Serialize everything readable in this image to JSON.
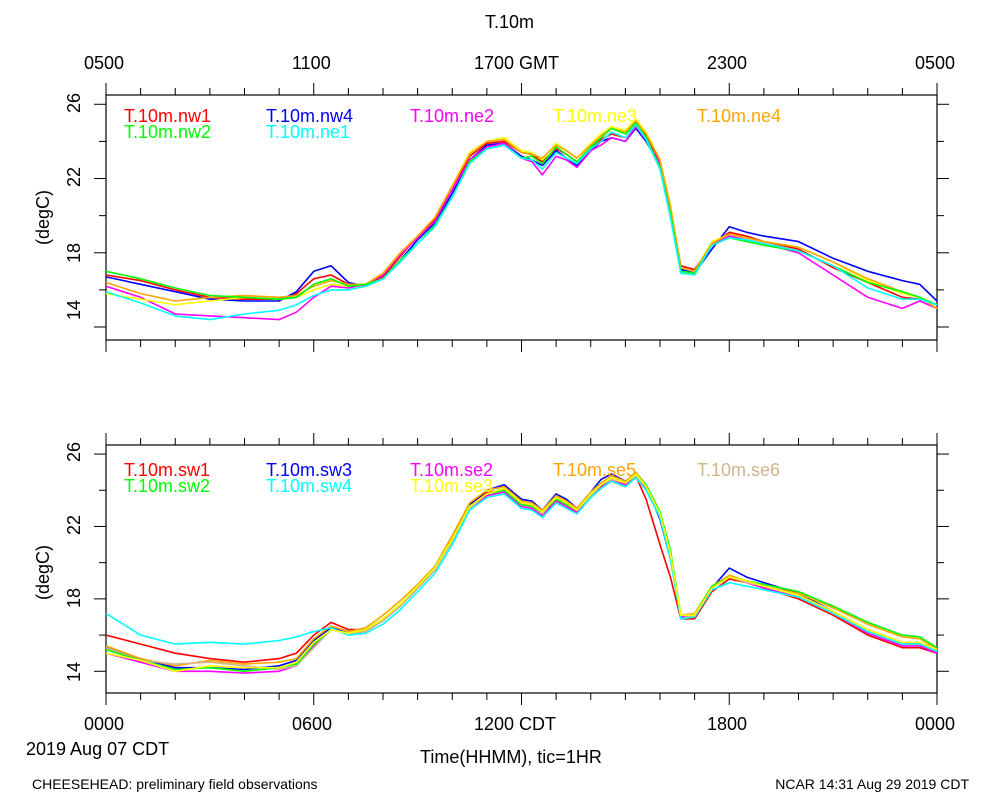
{
  "chart_data": [
    {
      "type": "line",
      "title": "T.10m",
      "ylabel": "(degC)",
      "ylim": [
        13.3,
        26.5
      ],
      "yticks": [
        14,
        18,
        22,
        26
      ],
      "xlim": [
        0,
        24
      ],
      "top_axis_labels": [
        "0500",
        "1100",
        "1700 GMT",
        "2300",
        "0500"
      ],
      "legend": [
        "T.10m.nw1",
        "T.10m.nw4",
        "T.10m.ne2",
        "T.10m.ne3",
        "T.10m.ne4",
        "T.10m.nw2",
        "T.10m.ne1"
      ],
      "x": [
        0,
        1,
        2,
        3,
        4,
        5,
        5.5,
        6,
        6.5,
        7,
        7.5,
        8,
        8.5,
        9,
        9.5,
        10,
        10.5,
        11,
        11.5,
        12,
        12.3,
        12.6,
        13,
        13.3,
        13.6,
        14,
        14.3,
        14.6,
        15,
        15.3,
        15.6,
        16,
        16.3,
        16.6,
        17,
        17.5,
        18,
        18.5,
        19,
        20,
        21,
        22,
        23,
        23.5,
        24
      ],
      "series": [
        {
          "name": "T.10m.nw1",
          "color": "#ff0000",
          "values": [
            16.8,
            16.5,
            16.0,
            15.6,
            15.5,
            15.5,
            15.8,
            16.6,
            16.8,
            16.3,
            16.3,
            16.7,
            17.8,
            18.9,
            19.8,
            21.4,
            23.2,
            23.9,
            24.0,
            23.4,
            23.3,
            22.9,
            23.6,
            23.3,
            22.9,
            23.6,
            24.1,
            24.4,
            24.2,
            24.9,
            24.3,
            22.9,
            20.5,
            17.3,
            17.1,
            18.4,
            19.1,
            18.9,
            18.6,
            18.2,
            17.2,
            16.4,
            15.6,
            15.5,
            15.2
          ]
        },
        {
          "name": "T.10m.nw4",
          "color": "#0000ff",
          "values": [
            16.7,
            16.3,
            15.9,
            15.5,
            15.4,
            15.4,
            15.9,
            17.0,
            17.3,
            16.4,
            16.2,
            16.6,
            17.6,
            18.7,
            19.6,
            21.2,
            23.0,
            23.8,
            23.9,
            23.2,
            23.0,
            22.7,
            23.5,
            23.1,
            22.7,
            23.5,
            24.0,
            24.2,
            24.0,
            24.7,
            24.0,
            22.7,
            20.3,
            17.1,
            16.9,
            18.2,
            19.4,
            19.1,
            18.9,
            18.6,
            17.7,
            17.0,
            16.5,
            16.3,
            15.4
          ]
        },
        {
          "name": "T.10m.ne2",
          "color": "#ff00ff",
          "values": [
            16.2,
            15.6,
            14.7,
            14.6,
            14.5,
            14.4,
            14.8,
            15.6,
            16.2,
            16.1,
            16.3,
            16.8,
            17.9,
            18.8,
            19.7,
            21.4,
            23.0,
            23.7,
            23.9,
            23.1,
            22.9,
            22.2,
            23.2,
            23.0,
            22.6,
            23.5,
            23.8,
            24.2,
            24.0,
            24.8,
            24.1,
            22.8,
            20.1,
            17.0,
            16.9,
            18.4,
            18.9,
            18.7,
            18.5,
            18.0,
            16.8,
            15.6,
            15.0,
            15.4,
            15.0
          ]
        },
        {
          "name": "T.10m.ne3",
          "color": "#ffff00",
          "values": [
            15.8,
            15.5,
            15.2,
            15.4,
            15.6,
            15.5,
            15.6,
            16.0,
            16.3,
            16.2,
            16.3,
            16.9,
            18.0,
            18.9,
            19.9,
            21.6,
            23.4,
            24.0,
            24.2,
            23.5,
            23.4,
            23.0,
            23.9,
            23.5,
            23.1,
            23.9,
            24.4,
            24.8,
            24.6,
            25.2,
            24.5,
            23.0,
            20.6,
            17.2,
            17.0,
            18.6,
            19.0,
            18.8,
            18.6,
            18.3,
            17.5,
            16.5,
            15.8,
            15.6,
            15.0
          ]
        },
        {
          "name": "T.10m.ne4",
          "color": "#ffa500",
          "values": [
            16.4,
            15.8,
            15.4,
            15.6,
            15.7,
            15.6,
            15.7,
            16.2,
            16.5,
            16.3,
            16.3,
            16.9,
            18.0,
            18.9,
            19.9,
            21.6,
            23.3,
            24.0,
            24.1,
            23.4,
            23.3,
            23.1,
            23.8,
            23.5,
            23.1,
            23.8,
            24.3,
            24.7,
            24.5,
            25.1,
            24.4,
            23.0,
            20.5,
            17.2,
            17.0,
            18.5,
            19.0,
            18.8,
            18.6,
            18.3,
            17.5,
            16.6,
            15.9,
            15.6,
            15.0
          ]
        },
        {
          "name": "T.10m.nw2",
          "color": "#00ff00",
          "values": [
            17.0,
            16.6,
            16.1,
            15.7,
            15.6,
            15.5,
            15.6,
            16.3,
            16.6,
            16.2,
            16.3,
            16.6,
            17.6,
            18.5,
            19.5,
            21.0,
            22.9,
            23.6,
            23.8,
            23.1,
            23.2,
            22.8,
            23.7,
            23.3,
            22.9,
            23.7,
            24.2,
            24.7,
            24.4,
            25.0,
            24.2,
            22.6,
            20.1,
            17.0,
            16.9,
            18.4,
            18.8,
            18.6,
            18.4,
            18.1,
            17.3,
            16.4,
            15.9,
            15.6,
            15.2
          ]
        },
        {
          "name": "T.10m.ne1",
          "color": "#00ffff",
          "values": [
            15.9,
            15.3,
            14.6,
            14.4,
            14.7,
            14.9,
            15.2,
            15.7,
            16.0,
            16.0,
            16.2,
            16.6,
            17.5,
            18.5,
            19.4,
            21.0,
            22.8,
            23.6,
            23.8,
            23.1,
            23.0,
            22.5,
            23.4,
            23.1,
            22.8,
            23.6,
            24.0,
            24.5,
            24.2,
            24.9,
            24.1,
            22.5,
            19.9,
            16.9,
            16.8,
            18.4,
            18.8,
            18.7,
            18.5,
            18.1,
            17.3,
            16.1,
            15.5,
            15.5,
            15.2
          ]
        }
      ]
    },
    {
      "type": "line",
      "ylabel": "(degC)",
      "ylim": [
        12.8,
        26.5
      ],
      "yticks": [
        14,
        18,
        22,
        26
      ],
      "xlim": [
        0,
        24
      ],
      "xticklabels": [
        "0000",
        "0600",
        "1200 CDT",
        "1800",
        "0000"
      ],
      "xlabel": "Time(HHMM), tic=1HR",
      "date_label": "2019 Aug 07 CDT",
      "legend": [
        "T.10m.sw1",
        "T.10m.sw3",
        "T.10m.se2",
        "T.10m.se5",
        "T.10m.se6",
        "T.10m.sw2",
        "T.10m.sw4",
        "T.10m.se3"
      ],
      "x": [
        0,
        1,
        2,
        3,
        4,
        5,
        5.5,
        6,
        6.5,
        7,
        7.5,
        8,
        8.5,
        9,
        9.5,
        10,
        10.5,
        11,
        11.5,
        12,
        12.3,
        12.6,
        13,
        13.3,
        13.6,
        14,
        14.3,
        14.6,
        15,
        15.3,
        15.6,
        16,
        16.3,
        16.6,
        17,
        17.5,
        18,
        18.5,
        19,
        20,
        21,
        22,
        23,
        23.5,
        24
      ],
      "series": [
        {
          "name": "T.10m.sw1",
          "color": "#ff0000",
          "values": [
            16.0,
            15.5,
            15.0,
            14.7,
            14.5,
            14.7,
            15.0,
            16.0,
            16.7,
            16.3,
            16.3,
            16.9,
            17.6,
            18.6,
            19.6,
            21.3,
            23.1,
            23.9,
            24.0,
            23.3,
            23.1,
            22.7,
            23.5,
            23.1,
            22.8,
            23.6,
            24.1,
            24.5,
            24.2,
            24.8,
            23.5,
            21.0,
            19.2,
            16.9,
            16.9,
            18.4,
            19.1,
            18.9,
            18.6,
            18.0,
            17.1,
            16.0,
            15.3,
            15.3,
            15.0
          ]
        },
        {
          "name": "T.10m.sw3",
          "color": "#0000ff",
          "values": [
            15.3,
            14.7,
            14.2,
            14.2,
            14.1,
            14.3,
            14.6,
            15.7,
            16.4,
            16.1,
            16.2,
            16.8,
            17.6,
            18.6,
            19.6,
            21.3,
            23.2,
            24.0,
            24.3,
            23.5,
            23.4,
            22.9,
            23.8,
            23.5,
            23.0,
            23.9,
            24.6,
            24.9,
            24.5,
            24.9,
            24.2,
            22.4,
            20.2,
            17.0,
            17.1,
            18.6,
            19.7,
            19.2,
            18.9,
            18.3,
            17.3,
            16.3,
            15.6,
            15.5,
            15.1
          ]
        },
        {
          "name": "T.10m.se2",
          "color": "#ff00ff",
          "values": [
            15.0,
            14.5,
            14.0,
            14.0,
            13.9,
            14.0,
            14.3,
            15.4,
            16.3,
            16.1,
            16.2,
            16.8,
            17.6,
            18.6,
            19.6,
            21.2,
            23.0,
            23.7,
            23.9,
            23.1,
            23.0,
            22.6,
            23.4,
            23.1,
            22.8,
            23.7,
            24.2,
            24.6,
            24.3,
            24.8,
            24.1,
            22.6,
            20.3,
            17.0,
            17.1,
            18.6,
            19.2,
            18.9,
            18.6,
            18.1,
            17.2,
            16.1,
            15.4,
            15.4,
            15.0
          ]
        },
        {
          "name": "T.10m.se5",
          "color": "#ffa500",
          "values": [
            15.4,
            14.7,
            14.3,
            14.6,
            14.4,
            14.5,
            14.7,
            15.8,
            16.5,
            16.2,
            16.4,
            17.1,
            17.9,
            18.8,
            19.8,
            21.5,
            23.3,
            24.0,
            24.2,
            23.4,
            23.3,
            22.9,
            23.7,
            23.4,
            23.0,
            23.9,
            24.4,
            24.8,
            24.5,
            25.0,
            24.3,
            22.8,
            20.6,
            17.1,
            17.2,
            18.7,
            19.3,
            19.0,
            18.7,
            18.3,
            17.5,
            16.6,
            15.9,
            15.8,
            15.2
          ]
        },
        {
          "name": "T.10m.se6",
          "color": "#d2b48c",
          "values": [
            15.3,
            14.6,
            14.4,
            14.5,
            14.3,
            14.1,
            14.3,
            15.3,
            16.3,
            16.1,
            16.2,
            16.8,
            17.6,
            18.6,
            19.6,
            21.2,
            23.0,
            23.8,
            24.0,
            23.2,
            23.1,
            22.7,
            23.6,
            23.2,
            22.9,
            23.7,
            24.3,
            24.6,
            24.4,
            24.8,
            24.2,
            22.7,
            20.4,
            17.1,
            17.0,
            18.6,
            19.2,
            18.9,
            18.7,
            18.2,
            17.3,
            16.3,
            15.6,
            15.6,
            15.2
          ]
        },
        {
          "name": "T.10m.sw2",
          "color": "#00ff00",
          "values": [
            15.2,
            14.6,
            14.1,
            14.2,
            14.0,
            14.2,
            14.4,
            15.5,
            16.3,
            16.1,
            16.3,
            16.9,
            17.7,
            18.7,
            19.7,
            21.3,
            23.1,
            23.8,
            24.0,
            23.2,
            23.1,
            22.8,
            23.5,
            23.2,
            22.9,
            23.8,
            24.3,
            24.7,
            24.4,
            24.9,
            24.3,
            22.8,
            20.7,
            17.1,
            17.1,
            18.7,
            19.2,
            19.0,
            18.8,
            18.4,
            17.6,
            16.7,
            16.0,
            15.9,
            15.3
          ]
        },
        {
          "name": "T.10m.sw4",
          "color": "#00ffff",
          "values": [
            17.2,
            16.0,
            15.5,
            15.6,
            15.5,
            15.7,
            15.9,
            16.2,
            16.4,
            16.0,
            16.1,
            16.6,
            17.4,
            18.4,
            19.4,
            21.0,
            22.9,
            23.6,
            23.8,
            23.0,
            22.9,
            22.5,
            23.3,
            23.0,
            22.7,
            23.6,
            24.1,
            24.5,
            24.2,
            24.7,
            24.0,
            22.5,
            20.2,
            16.9,
            17.0,
            18.5,
            18.9,
            18.7,
            18.5,
            18.1,
            17.2,
            16.2,
            15.5,
            15.5,
            15.1
          ]
        },
        {
          "name": "T.10m.se3",
          "color": "#ffff00",
          "values": [
            15.0,
            14.6,
            14.0,
            14.3,
            14.2,
            14.2,
            14.5,
            15.6,
            16.3,
            16.1,
            16.3,
            16.9,
            17.7,
            18.7,
            19.7,
            21.3,
            23.1,
            23.8,
            24.1,
            23.3,
            23.2,
            22.8,
            23.6,
            23.3,
            22.9,
            23.8,
            24.3,
            24.7,
            24.4,
            24.9,
            24.2,
            22.7,
            20.5,
            17.1,
            17.1,
            18.6,
            19.2,
            19.0,
            18.7,
            18.2,
            17.3,
            16.3,
            15.6,
            15.6,
            15.2
          ]
        }
      ]
    }
  ],
  "footer": {
    "left": "CHEESEHEAD: preliminary field observations",
    "right": "NCAR 14:31 Aug 29 2019 CDT"
  }
}
